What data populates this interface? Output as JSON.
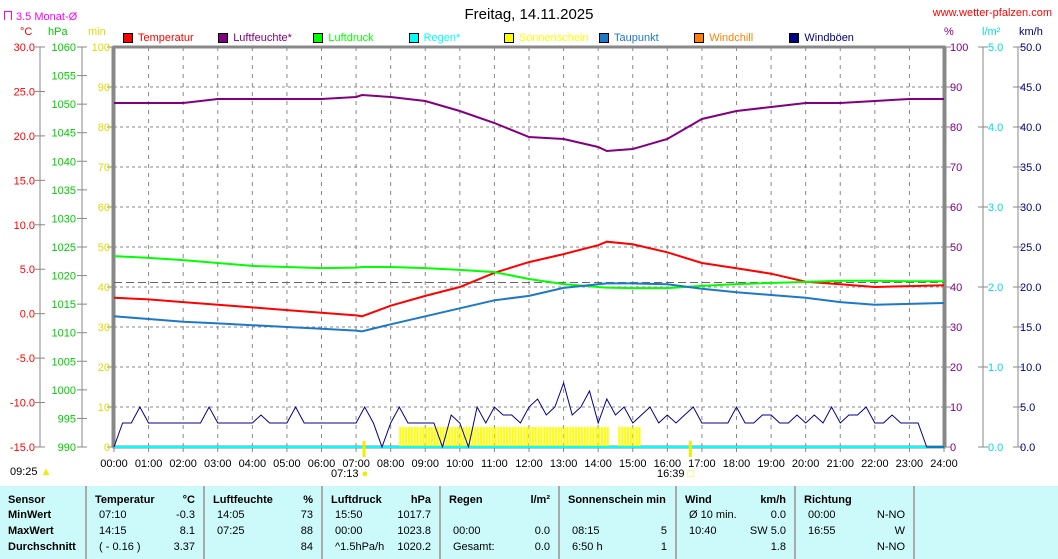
{
  "header": {
    "title": "Freitag, 14.11.2025",
    "site": "www.wetter-pfalzen.com",
    "avg_label": "3.5 Monat-Ø"
  },
  "units": {
    "temp": "°C",
    "pressure": "hPa",
    "sun": "min",
    "humidity": "%",
    "rain": "l/m²",
    "wind": "km/h"
  },
  "legend": [
    {
      "label": "Temperatur",
      "color": "#ff0000"
    },
    {
      "label": "Luftfeuchte*",
      "color": "#800080"
    },
    {
      "label": "Luftdruck",
      "color": "#00ff00"
    },
    {
      "label": "Regen*",
      "color": "#00ffff"
    },
    {
      "label": "Sonnenschein",
      "color": "#ffff00"
    },
    {
      "label": "Taupunkt",
      "color": "#1e78c8"
    },
    {
      "label": "Windchill",
      "color": "#ff8000"
    },
    {
      "label": "Windböen",
      "color": "#000080"
    }
  ],
  "astro": {
    "moon": "09:25",
    "sunrise": "07:13",
    "sunset": "16:39"
  },
  "chart_data": {
    "type": "line",
    "title": "Freitag, 14.11.2025",
    "x_ticks": [
      "00:00",
      "01:00",
      "02:00",
      "03:00",
      "04:00",
      "05:00",
      "06:00",
      "07:00",
      "08:00",
      "09:00",
      "10:00",
      "11:00",
      "12:00",
      "13:00",
      "14:00",
      "15:00",
      "16:00",
      "17:00",
      "18:00",
      "19:00",
      "20:00",
      "21:00",
      "22:00",
      "23:00",
      "24:00"
    ],
    "axes": {
      "temp": {
        "range": [
          -15,
          30
        ],
        "ticks": [
          "30.0",
          "25.0",
          "20.0",
          "15.0",
          "10.0",
          "5.0",
          "0.0",
          "-5.0",
          "-10.0",
          "-15.0"
        ]
      },
      "pressure": {
        "range": [
          990,
          1060
        ],
        "ticks": [
          "1060",
          "1055",
          "1050",
          "1045",
          "1040",
          "1035",
          "1030",
          "1025",
          "1020",
          "1015",
          "1010",
          "1005",
          "1000",
          "995",
          "990"
        ]
      },
      "sun": {
        "range": [
          0,
          100
        ],
        "ticks": [
          "100",
          "90",
          "80",
          "70",
          "60",
          "50",
          "40",
          "30",
          "20",
          "10",
          "0"
        ]
      },
      "humidity": {
        "range": [
          0,
          100
        ],
        "ticks": [
          "100",
          "90",
          "80",
          "70",
          "60",
          "50",
          "40",
          "30",
          "20",
          "10",
          "0"
        ]
      },
      "rain": {
        "range": [
          0,
          5
        ],
        "ticks": [
          "5.0",
          "4.0",
          "3.0",
          "2.0",
          "1.0",
          "0.0"
        ]
      },
      "wind": {
        "range": [
          0,
          50
        ],
        "ticks": [
          "50.0",
          "45.0",
          "40.0",
          "35.0",
          "30.0",
          "25.0",
          "20.0",
          "15.0",
          "10.0",
          "5.0",
          "0.0"
        ]
      }
    },
    "monthly_avg_temp": 3.5,
    "hours": [
      0,
      1,
      2,
      3,
      4,
      5,
      6,
      7,
      7.17,
      8,
      9,
      10,
      11,
      12,
      13,
      14,
      14.25,
      15,
      16,
      17,
      18,
      19,
      20,
      21,
      22,
      23,
      24
    ],
    "series": [
      {
        "name": "Temperatur",
        "axis": "temp",
        "values": [
          1.8,
          1.6,
          1.3,
          1.0,
          0.7,
          0.4,
          0.1,
          -0.2,
          -0.3,
          0.9,
          2.0,
          3.0,
          4.6,
          5.8,
          6.7,
          7.7,
          8.1,
          7.8,
          6.9,
          5.7,
          5.1,
          4.5,
          3.6,
          3.3,
          3.0,
          3.1,
          3.2
        ]
      },
      {
        "name": "Luftfeuchte*",
        "axis": "humidity",
        "values": [
          86,
          86,
          86,
          87,
          87,
          87,
          87,
          87.5,
          88,
          87.5,
          86.5,
          84,
          81,
          77.5,
          77,
          75,
          74,
          74.5,
          77,
          82,
          84,
          85,
          86,
          86,
          86.5,
          87,
          87
        ]
      },
      {
        "name": "Luftdruck",
        "axis": "pressure",
        "values": [
          1023.4,
          1023.1,
          1022.7,
          1022.2,
          1021.7,
          1021.5,
          1021.3,
          1021.4,
          1021.5,
          1021.5,
          1021.3,
          1021.0,
          1020.6,
          1019.4,
          1018.5,
          1018.0,
          1017.9,
          1017.8,
          1017.8,
          1018.2,
          1018.5,
          1018.7,
          1018.9,
          1019.1,
          1019.1,
          1019.0,
          1019.0
        ]
      },
      {
        "name": "Taupunkt",
        "axis": "temp",
        "values": [
          -0.3,
          -0.6,
          -0.9,
          -1.1,
          -1.3,
          -1.5,
          -1.7,
          -1.9,
          -2.0,
          -1.2,
          -0.3,
          0.6,
          1.5,
          2.0,
          2.9,
          3.3,
          3.4,
          3.4,
          3.3,
          2.8,
          2.4,
          2.1,
          1.8,
          1.3,
          1.0,
          1.1,
          1.2
        ]
      }
    ],
    "wind_gusts_15min": [
      0,
      3,
      3,
      5,
      3,
      3,
      3,
      3,
      3,
      3,
      3,
      5,
      3,
      3,
      3,
      3,
      3,
      4,
      3,
      3,
      3,
      5,
      3,
      3,
      3,
      3,
      3,
      3,
      3,
      5,
      3,
      0,
      3,
      5,
      3,
      3,
      3,
      3,
      0,
      4,
      3,
      0,
      5,
      3,
      5,
      4,
      4,
      3,
      5,
      6,
      4,
      5,
      8,
      4,
      5,
      7,
      3,
      6,
      4,
      5,
      3,
      4,
      5,
      3,
      4,
      3,
      4,
      5,
      3,
      3,
      3,
      3,
      5,
      3,
      3,
      4,
      4,
      3,
      3,
      4,
      3,
      4,
      3,
      5,
      3,
      4,
      4,
      5,
      3,
      3,
      4,
      3,
      3,
      3,
      0,
      0,
      0
    ],
    "sunshine_5min": {
      "start": "08:15",
      "end": "15:15",
      "gap": [
        "14:20",
        "14:35"
      ],
      "value": 5
    }
  },
  "table": {
    "headers": [
      "Sensor",
      "Temperatur",
      "°C",
      "Luftfeuchte",
      "%",
      "Luftdruck",
      "hPa",
      "Regen",
      "l/m²",
      "Sonnenschein min",
      "",
      "Wind",
      "km/h",
      "Richtung",
      ""
    ],
    "rows": [
      {
        "label": "MinWert",
        "cells": [
          "07:10",
          "-0.3",
          "14:05",
          "73",
          "15:50",
          "1017.7",
          "",
          "",
          "",
          "",
          "Ø 10 min.",
          "0.0",
          "00:00",
          "N-NO"
        ]
      },
      {
        "label": "MaxWert",
        "cells": [
          "14:15",
          "8.1",
          "07:25",
          "88",
          "00:00",
          "1023.8",
          "00:00",
          "0.0",
          "08:15",
          "5",
          "10:40",
          "SW 5.0",
          "16:55",
          "W"
        ]
      },
      {
        "label": "Durchschnitt",
        "cells": [
          "( - 0.16 )",
          "3.37",
          "",
          "84",
          "^1.5hPa/h",
          "1020.2",
          "Gesamt:",
          "0.0",
          "6:50 h",
          "1",
          "",
          "1.8",
          "",
          "N-NO"
        ]
      }
    ]
  }
}
